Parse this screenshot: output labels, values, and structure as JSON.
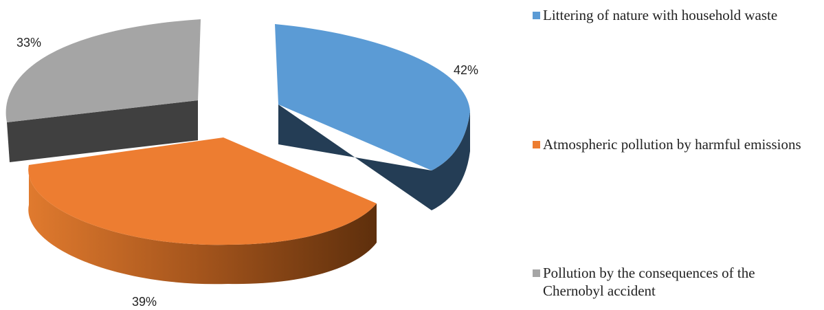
{
  "chart_data": {
    "type": "pie",
    "style": "3d-exploded",
    "slices": [
      {
        "label": "Littering of nature with household waste",
        "value": 42,
        "display": "42%",
        "color": "#5B9BD5",
        "side_color": "#243D55"
      },
      {
        "label": "Atmospheric pollution by harmful emissions",
        "value": 39,
        "display": "39%",
        "color": "#ED7D31",
        "side_color": "#A8531A"
      },
      {
        "label": "Pollution by the consequences of the Chernobyl accident",
        "value": 33,
        "display": "33%",
        "color": "#A5A5A5",
        "side_color": "#404040"
      }
    ],
    "legend_position": "right"
  }
}
